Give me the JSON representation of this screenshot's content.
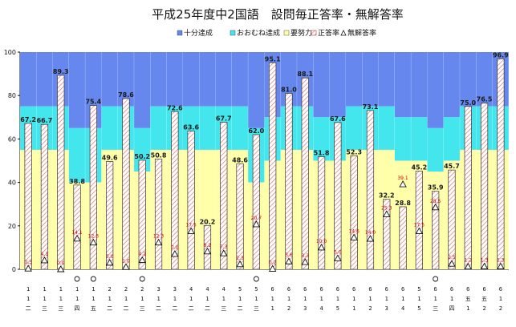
{
  "chart_data": {
    "type": "bar",
    "title": "平成25年度中2国語　設問毎正答率・無解答率",
    "legend_position": "top",
    "ylim": [
      0,
      100
    ],
    "y_ticks": [
      0,
      20,
      40,
      60,
      80,
      100
    ],
    "legend": [
      {
        "key": "s1",
        "label": "十分達成",
        "color": "#6688ee"
      },
      {
        "key": "s2",
        "label": "おおむね達成",
        "color": "#44e6ee"
      },
      {
        "key": "s3",
        "label": "要努力",
        "color": "#ffffaa"
      },
      {
        "key": "correct",
        "label": "正答率",
        "color": "#ffffff"
      },
      {
        "key": "noans",
        "label": "無解答率",
        "color": "#ffffff"
      }
    ],
    "categories": [
      {
        "label": "1-1-二",
        "marked": false
      },
      {
        "label": "1-1-三",
        "marked": false
      },
      {
        "label": "1-1-三",
        "marked": false
      },
      {
        "label": "1-1-四",
        "marked": true
      },
      {
        "label": "1-1-五",
        "marked": true
      },
      {
        "label": "2-1-二",
        "marked": false
      },
      {
        "label": "2-1-二",
        "marked": false
      },
      {
        "label": "2-1-三",
        "marked": true
      },
      {
        "label": "3-1-二",
        "marked": false
      },
      {
        "label": "3-1-二",
        "marked": false
      },
      {
        "label": "4-1-二",
        "marked": false
      },
      {
        "label": "4-1-二",
        "marked": false
      },
      {
        "label": "4-1-三",
        "marked": false
      },
      {
        "label": "5-1-二",
        "marked": false
      },
      {
        "label": "5-1-三",
        "marked": true
      },
      {
        "label": "6-1-1",
        "marked": false
      },
      {
        "label": "6-1-2",
        "marked": false
      },
      {
        "label": "6-1-3",
        "marked": false
      },
      {
        "label": "6-1-4",
        "marked": false
      },
      {
        "label": "6-1-5",
        "marked": false
      },
      {
        "label": "6-1-1",
        "marked": false
      },
      {
        "label": "6-1-2",
        "marked": false
      },
      {
        "label": "6-1-3",
        "marked": false
      },
      {
        "label": "6-1-4",
        "marked": false
      },
      {
        "label": "5-1-5",
        "marked": false
      },
      {
        "label": "6-1-三",
        "marked": true
      },
      {
        "label": "6-1-四",
        "marked": false
      },
      {
        "label": "6-五-1",
        "marked": false
      },
      {
        "label": "6-五-2",
        "marked": false
      },
      {
        "label": "6-1-2",
        "marked": false
      }
    ],
    "band_upper_s3": [
      55,
      55,
      55,
      40,
      40,
      55,
      55,
      45,
      55,
      55,
      55,
      55,
      55,
      55,
      40,
      50,
      55,
      55,
      50,
      50,
      55,
      55,
      55,
      50,
      50,
      45,
      50,
      55,
      55,
      55
    ],
    "band_upper_s2": [
      75,
      75,
      75,
      65,
      65,
      75,
      75,
      65,
      75,
      75,
      75,
      75,
      75,
      75,
      65,
      70,
      75,
      75,
      70,
      70,
      75,
      75,
      75,
      70,
      70,
      65,
      70,
      75,
      75,
      75
    ],
    "series": [
      {
        "name": "正答率",
        "values": [
          67.2,
          66.7,
          89.3,
          38.8,
          75.4,
          49.6,
          78.6,
          50.2,
          50.8,
          72.6,
          63.6,
          20.2,
          67.7,
          48.6,
          62.0,
          95.1,
          81.0,
          88.1,
          51.8,
          67.6,
          52.3,
          73.1,
          32.2,
          28.8,
          45.2,
          35.9,
          45.7,
          75.0,
          76.5,
          96.9
        ],
        "labels": [
          "67.2",
          "66.7",
          "89.3",
          "38.8",
          "75.4",
          "49.6",
          "78.6",
          "50.2",
          "50.8",
          "72.6",
          "63.6",
          "20.2",
          "67.7",
          "48.6",
          "62.0",
          "95.1",
          "81.0",
          "88.1",
          "51.8",
          "67.6",
          "52.3",
          "73.1",
          "32.2",
          "28.8",
          "45.2",
          "35.9",
          "45.7",
          "75.0",
          "76.5",
          "96.9"
        ]
      },
      {
        "name": "無解答率",
        "values": [
          0.3,
          4.1,
          0.0,
          14.1,
          12.3,
          3.0,
          1.0,
          4.2,
          12.3,
          7.0,
          17.5,
          8.2,
          7.3,
          2.3,
          20.7,
          0.2,
          3.6,
          3.3,
          10.0,
          5.0,
          14.6,
          14.0,
          25.3,
          39.1,
          17.5,
          28.5,
          2.5,
          1.2,
          1.3,
          1.3
        ],
        "labels": [
          "0.3",
          "4.1",
          "0.0",
          "14.1",
          "12.3",
          "3.0",
          "1.0",
          "4.2",
          "12.3",
          "7.0",
          "17.5",
          "8.2",
          "7.3",
          "2.3",
          "20.7",
          "0.2",
          "3.6",
          "3.3",
          "10.0",
          "5.0",
          "14.6",
          "14.0",
          "25.3",
          "39.1",
          "17.5",
          "28.5",
          "2.5",
          "1.2",
          "1.3",
          "1.3"
        ]
      }
    ]
  }
}
